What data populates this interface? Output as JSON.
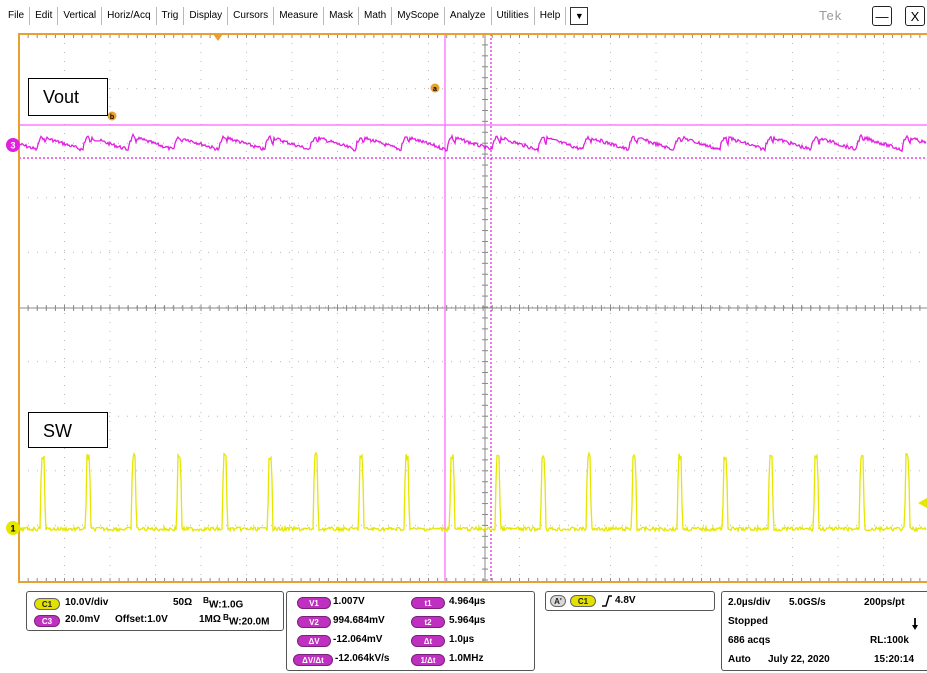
{
  "menu": {
    "items": [
      "File",
      "Edit",
      "Vertical",
      "Horiz/Acq",
      "Trig",
      "Display",
      "Cursors",
      "Measure",
      "Mask",
      "Math",
      "MyScope",
      "Analyze",
      "Utilities",
      "Help"
    ],
    "dropdown_icon": "chevron-down-icon",
    "brand": "Tek",
    "minimize_label": "—",
    "close_label": "X"
  },
  "screen": {
    "vout_label": "Vout",
    "sw_label": "SW",
    "ch3_marker": "3",
    "ch1_marker": "1",
    "cursor_a_marker": "a",
    "cursor_b_marker": "b",
    "colors": {
      "frame": "#e8a030",
      "ch1": "#e6e600",
      "ch3": "#e020e0",
      "cursor_a": "#ff60ff",
      "cursor_b": "#e020e0",
      "grid": "#9c9c9c"
    }
  },
  "channels": {
    "c1_tag": "C1",
    "c1_scale": "10.0V/div",
    "c1_term": "50Ω",
    "c1_bw_prefix": "B",
    "c1_bw_sub": "W",
    "c1_bw_value": ":1.0G",
    "c3_tag": "C3",
    "c3_scale": "20.0mV",
    "c3_offset": "Offset:1.0V",
    "c3_term": "1MΩ",
    "c3_bw_prefix": "B",
    "c3_bw_sub": "W",
    "c3_bw_value": ":20.0M"
  },
  "cursors": {
    "v1_tag": "V1",
    "v1": "1.007V",
    "v2_tag": "V2",
    "v2": "994.684mV",
    "dv_tag": "ΔV",
    "dv": "-12.064mV",
    "dvdt_tag": "ΔV/Δt",
    "dvdt": "-12.064kV/s",
    "t1_tag": "t1",
    "t1": "4.964µs",
    "t2_tag": "t2",
    "t2": "5.964µs",
    "dt_tag": "Δt",
    "dt": "1.0µs",
    "inv_tag": "1/Δt",
    "inv": "1.0MHz"
  },
  "trigger": {
    "a_tag": "A'",
    "src_tag": "C1",
    "level": "4.8V"
  },
  "acquisition": {
    "time_div": "2.0µs/div",
    "sample_rate": "5.0GS/s",
    "resolution": "200ps/pt",
    "state": "Stopped",
    "acqs": "686 acqs",
    "record_length": "RL:100k",
    "mode": "Auto",
    "date": "July 22, 2020",
    "time": "15:20:14"
  }
}
